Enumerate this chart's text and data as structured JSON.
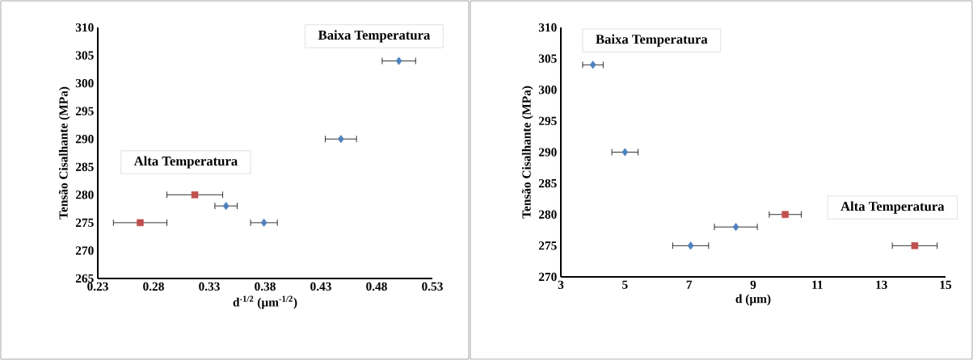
{
  "chart_data": [
    {
      "type": "scatter",
      "xlabel": "d$^{-1/2}$ (µm$^{-1/2}$)",
      "ylabel": "Tensão Cisalhante (MPa)",
      "xlim": [
        0.23,
        0.53
      ],
      "xticks": [
        0.23,
        0.28,
        0.33,
        0.38,
        0.43,
        0.48,
        0.53
      ],
      "ylim": [
        265,
        310
      ],
      "yticks": [
        265,
        270,
        275,
        280,
        285,
        290,
        295,
        300,
        305,
        310
      ],
      "series": [
        {
          "name": "Baixa Temperatura",
          "color": "#4f81bd",
          "marker": "diamond",
          "x": [
            0.5,
            0.448,
            0.345,
            0.379
          ],
          "values": [
            304,
            290,
            278,
            275
          ],
          "xerrors": [
            0.015,
            0.014,
            0.01,
            0.012
          ]
        },
        {
          "name": "Alta Temperatura",
          "color": "#c0504d",
          "marker": "square",
          "x": [
            0.317,
            0.268
          ],
          "values": [
            280,
            275
          ],
          "xerrors": [
            0.025,
            0.024
          ]
        }
      ]
    },
    {
      "type": "scatter",
      "xlabel": "d (µm)",
      "ylabel": "Tensão Cisalhante (MPa)",
      "xlim": [
        3,
        15
      ],
      "xticks": [
        3,
        5,
        7,
        9,
        11,
        13,
        15
      ],
      "ylim": [
        270,
        310
      ],
      "yticks": [
        270,
        275,
        280,
        285,
        290,
        295,
        300,
        305,
        310
      ],
      "series": [
        {
          "name": "Baixa Temperatura",
          "color": "#4f81bd",
          "marker": "diamond",
          "x": [
            4.0,
            5.0,
            7.05,
            8.46
          ],
          "values": [
            304,
            290,
            275,
            278
          ],
          "xerrors": [
            0.32,
            0.41,
            0.56,
            0.67
          ]
        },
        {
          "name": "Alta Temperatura",
          "color": "#c0504d",
          "marker": "square",
          "x": [
            10.0,
            14.04
          ],
          "values": [
            280,
            275
          ],
          "xerrors": [
            0.5,
            0.7
          ]
        }
      ]
    }
  ]
}
